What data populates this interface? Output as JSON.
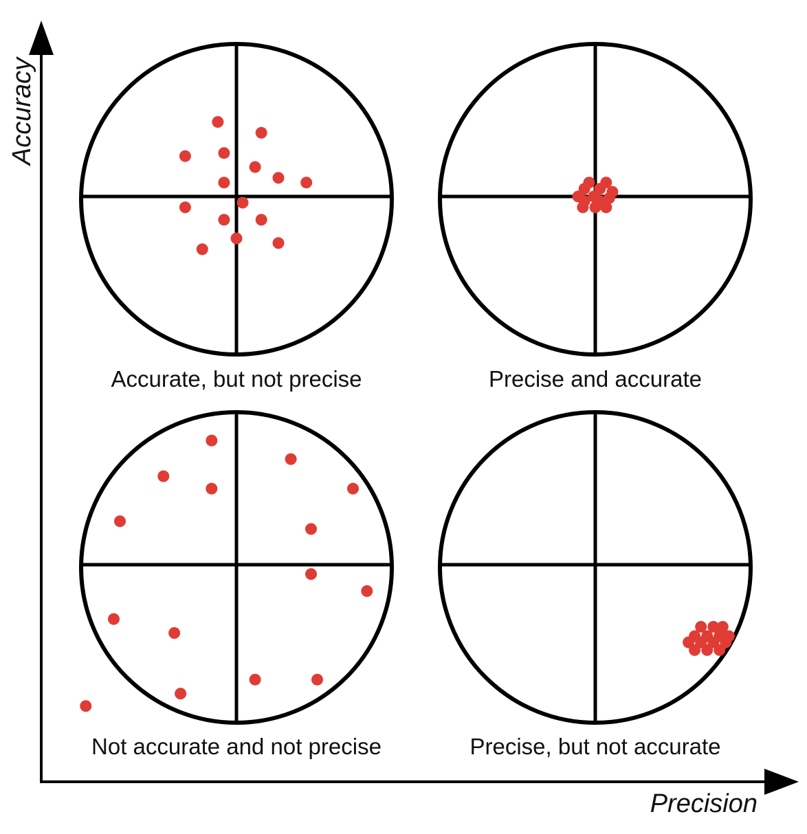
{
  "axes": {
    "y_label": "Accuracy",
    "x_label": "Precision"
  },
  "colors": {
    "shot": "#e03c36",
    "ring": "#000000",
    "background": "#ffffff"
  },
  "targets": [
    {
      "caption": "Accurate, but not precise",
      "shots": [
        [
          -0.12,
          0.48
        ],
        [
          0.16,
          0.41
        ],
        [
          -0.33,
          0.26
        ],
        [
          -0.08,
          0.28
        ],
        [
          0.12,
          0.19
        ],
        [
          0.27,
          0.12
        ],
        [
          0.45,
          0.09
        ],
        [
          -0.08,
          0.09
        ],
        [
          -0.33,
          -0.07
        ],
        [
          0.04,
          -0.04
        ],
        [
          -0.08,
          -0.15
        ],
        [
          0.16,
          -0.15
        ],
        [
          -0.22,
          -0.34
        ],
        [
          0.0,
          -0.27
        ],
        [
          0.27,
          -0.3
        ]
      ]
    },
    {
      "caption": "Precise and accurate",
      "shots": [
        [
          -0.04,
          0.09
        ],
        [
          0.07,
          0.09
        ],
        [
          -0.07,
          0.05
        ],
        [
          0.03,
          0.05
        ],
        [
          0.11,
          0.03
        ],
        [
          -0.11,
          0.0
        ],
        [
          -0.01,
          0.0
        ],
        [
          0.09,
          -0.01
        ],
        [
          -0.07,
          -0.03
        ],
        [
          0.03,
          -0.03
        ],
        [
          -0.08,
          -0.07
        ],
        [
          0.0,
          -0.07
        ],
        [
          0.07,
          -0.07
        ]
      ]
    },
    {
      "caption": "Not accurate and not precise",
      "shots": [
        [
          -0.16,
          0.8
        ],
        [
          0.35,
          0.68
        ],
        [
          -0.47,
          0.57
        ],
        [
          -0.16,
          0.49
        ],
        [
          0.75,
          0.49
        ],
        [
          -0.75,
          0.28
        ],
        [
          0.48,
          0.23
        ],
        [
          0.48,
          -0.06
        ],
        [
          0.84,
          -0.17
        ],
        [
          -0.79,
          -0.35
        ],
        [
          -0.4,
          -0.44
        ],
        [
          0.12,
          -0.74
        ],
        [
          0.52,
          -0.74
        ],
        [
          -0.36,
          -0.83
        ],
        [
          -0.97,
          -0.91
        ]
      ]
    },
    {
      "caption": "Precise, but not accurate",
      "shots": [
        [
          0.68,
          -0.4
        ],
        [
          0.76,
          -0.4
        ],
        [
          0.82,
          -0.4
        ],
        [
          0.64,
          -0.46
        ],
        [
          0.72,
          -0.46
        ],
        [
          0.8,
          -0.46
        ],
        [
          0.86,
          -0.46
        ],
        [
          0.6,
          -0.5
        ],
        [
          0.68,
          -0.5
        ],
        [
          0.76,
          -0.5
        ],
        [
          0.84,
          -0.5
        ],
        [
          0.64,
          -0.55
        ],
        [
          0.72,
          -0.55
        ],
        [
          0.8,
          -0.55
        ]
      ]
    }
  ]
}
